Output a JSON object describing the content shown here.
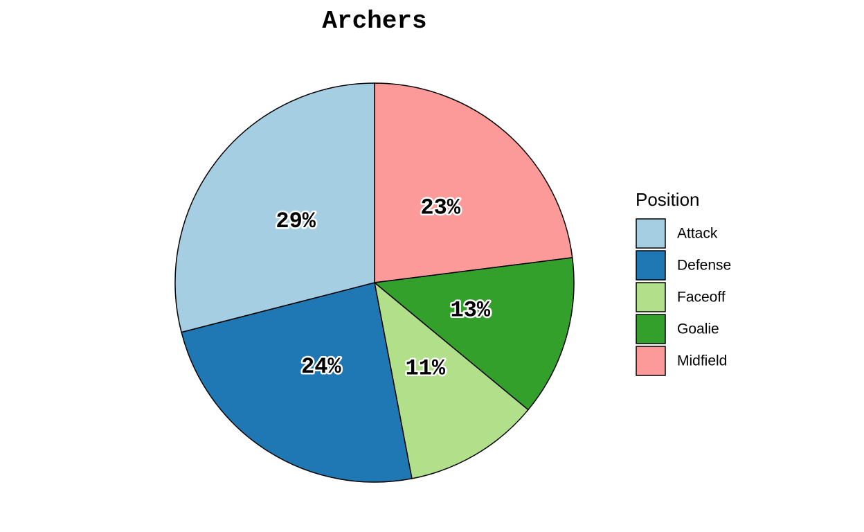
{
  "chart_data": {
    "type": "pie",
    "title": "Archers",
    "legend_title": "Position",
    "legend_position": "right",
    "start_angle_deg": 0,
    "direction": "clockwise",
    "slices": [
      {
        "name": "Midfield",
        "value": 23,
        "label": "23%",
        "color": "#FB9A99"
      },
      {
        "name": "Goalie",
        "value": 13,
        "label": "13%",
        "color": "#33A02C"
      },
      {
        "name": "Faceoff",
        "value": 11,
        "label": "11%",
        "color": "#B2DF8A"
      },
      {
        "name": "Defense",
        "value": 24,
        "label": "24%",
        "color": "#1F78B4"
      },
      {
        "name": "Attack",
        "value": 29,
        "label": "29%",
        "color": "#A6CEE3"
      }
    ],
    "legend": [
      {
        "name": "Attack",
        "color": "#A6CEE3"
      },
      {
        "name": "Defense",
        "color": "#1F78B4"
      },
      {
        "name": "Faceoff",
        "color": "#B2DF8A"
      },
      {
        "name": "Goalie",
        "color": "#33A02C"
      },
      {
        "name": "Midfield",
        "color": "#FB9A99"
      }
    ]
  }
}
